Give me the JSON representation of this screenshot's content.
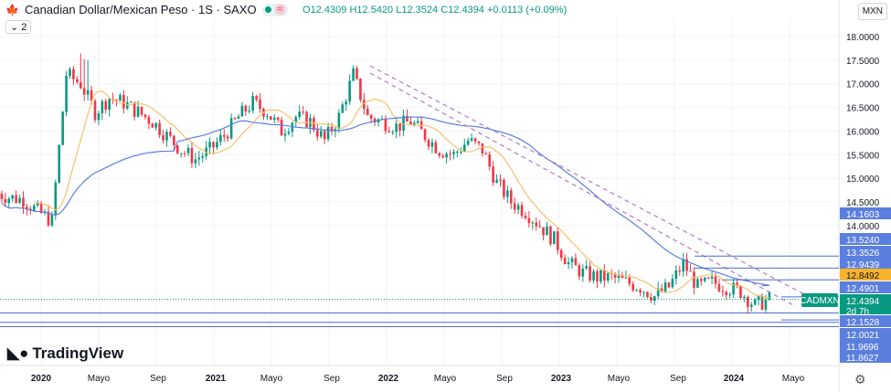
{
  "header": {
    "symbol_title": "Canadian Dollar/Mexican Peso · 1S · SAXO",
    "open": "O12.4309",
    "high": "H12.5420",
    "low": "L12.3524",
    "close": "C12.4394",
    "change": "+0.0113 (+0.09%)",
    "indicator_count": "2"
  },
  "currency": "MXN",
  "logo": "TradingView",
  "symbol_label": "CADMXN",
  "countdown": "2d 7h",
  "colors": {
    "up": "#089981",
    "down": "#f23645",
    "ma_fast": "#f5c16c",
    "ma_slow": "#5b7fde",
    "level": "#4a6fd1",
    "last": "#089981",
    "highlight": "#f7b32b",
    "trend": "#b07cc6"
  },
  "chart_data": {
    "type": "candlestick",
    "x_tick_labels": [
      "2020",
      "Mayo",
      "Sep",
      "2021",
      "Mayo",
      "Sep",
      "2022",
      "Mayo",
      "Sep",
      "2023",
      "Mayo",
      "Sep",
      "2024",
      "Mayo"
    ],
    "y_tick_labels": [
      "18.0000",
      "17.5000",
      "17.0000",
      "16.5000",
      "16.0000",
      "15.5000",
      "15.0000",
      "14.5000",
      "14.0000"
    ],
    "ylim": [
      11.8,
      18.3
    ],
    "monthly_closes": [
      {
        "m": "2019-10",
        "v": 14.7
      },
      {
        "m": "2019-11",
        "v": 14.6
      },
      {
        "m": "2019-12",
        "v": 14.55
      },
      {
        "m": "2020-01",
        "v": 14.3
      },
      {
        "m": "2020-02",
        "v": 14.1
      },
      {
        "m": "2020-03",
        "v": 17.2
      },
      {
        "m": "2020-04",
        "v": 17.0
      },
      {
        "m": "2020-05",
        "v": 16.4
      },
      {
        "m": "2020-06",
        "v": 16.7
      },
      {
        "m": "2020-07",
        "v": 16.6
      },
      {
        "m": "2020-08",
        "v": 16.4
      },
      {
        "m": "2020-09",
        "v": 16.2
      },
      {
        "m": "2020-10",
        "v": 15.9
      },
      {
        "m": "2020-11",
        "v": 15.6
      },
      {
        "m": "2020-12",
        "v": 15.4
      },
      {
        "m": "2021-01",
        "v": 15.6
      },
      {
        "m": "2021-02",
        "v": 15.9
      },
      {
        "m": "2021-03",
        "v": 16.3
      },
      {
        "m": "2021-04",
        "v": 16.6
      },
      {
        "m": "2021-05",
        "v": 16.4
      },
      {
        "m": "2021-06",
        "v": 16.0
      },
      {
        "m": "2021-07",
        "v": 16.3
      },
      {
        "m": "2021-08",
        "v": 16.2
      },
      {
        "m": "2021-09",
        "v": 15.8
      },
      {
        "m": "2021-10",
        "v": 16.3
      },
      {
        "m": "2021-11",
        "v": 17.2
      },
      {
        "m": "2021-12",
        "v": 16.3
      },
      {
        "m": "2022-01",
        "v": 16.2
      },
      {
        "m": "2022-02",
        "v": 16.1
      },
      {
        "m": "2022-03",
        "v": 16.2
      },
      {
        "m": "2022-04",
        "v": 15.9
      },
      {
        "m": "2022-05",
        "v": 15.6
      },
      {
        "m": "2022-06",
        "v": 15.5
      },
      {
        "m": "2022-07",
        "v": 15.8
      },
      {
        "m": "2022-08",
        "v": 15.6
      },
      {
        "m": "2022-09",
        "v": 14.9
      },
      {
        "m": "2022-10",
        "v": 14.5
      },
      {
        "m": "2022-11",
        "v": 14.3
      },
      {
        "m": "2022-12",
        "v": 14.0
      },
      {
        "m": "2023-01",
        "v": 13.7
      },
      {
        "m": "2023-02",
        "v": 13.2
      },
      {
        "m": "2023-03",
        "v": 13.0
      },
      {
        "m": "2023-04",
        "v": 12.9
      },
      {
        "m": "2023-05",
        "v": 12.9
      },
      {
        "m": "2023-06",
        "v": 12.8
      },
      {
        "m": "2023-07",
        "v": 12.7
      },
      {
        "m": "2023-08",
        "v": 12.5
      },
      {
        "m": "2023-09",
        "v": 12.7
      },
      {
        "m": "2023-10",
        "v": 13.2
      },
      {
        "m": "2023-11",
        "v": 12.7
      },
      {
        "m": "2023-12",
        "v": 12.8
      },
      {
        "m": "2024-01",
        "v": 12.7
      },
      {
        "m": "2024-02",
        "v": 12.6
      },
      {
        "m": "2024-03",
        "v": 12.3
      },
      {
        "m": "2024-04",
        "v": 12.44
      }
    ],
    "moving_averages": [
      "fast (yellow)",
      "slow (blue)"
    ],
    "price_labels": [
      {
        "text": "14.1603",
        "price": 14.1603,
        "kind": "ma_slow"
      },
      {
        "text": "13.5240",
        "price": 13.524,
        "kind": "level"
      },
      {
        "text": "13.3526",
        "price": 13.3526,
        "kind": "level"
      },
      {
        "text": "12.9439",
        "price": 12.9439,
        "kind": "level"
      },
      {
        "text": "12.8492",
        "price": 12.8492,
        "kind": "highlight"
      },
      {
        "text": "12.4901",
        "price": 12.4901,
        "kind": "level"
      },
      {
        "text": "12.4394",
        "price": 12.4394,
        "kind": "last"
      },
      {
        "text": "12.1528",
        "price": 12.1528,
        "kind": "level"
      },
      {
        "text": "12.0021",
        "price": 12.0021,
        "kind": "level"
      },
      {
        "text": "11.9696",
        "price": 11.9696,
        "kind": "level"
      },
      {
        "text": "11.8627",
        "price": 11.8627,
        "kind": "level"
      }
    ]
  }
}
